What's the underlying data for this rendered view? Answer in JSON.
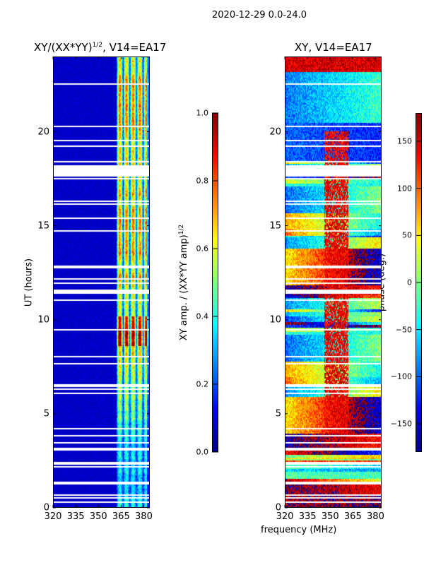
{
  "chart_data": {
    "type": "heatmap",
    "suptitle": "2020-12-29 0.0-24.0",
    "xlabel": "frequency (MHz)",
    "panels": [
      {
        "title": "XY/(XX*YY)",
        "title_exp": "1/2",
        "title_suffix": ", V14=EA17",
        "ylabel": "UT (hours)",
        "xlim": [
          320,
          384
        ],
        "ylim": [
          0,
          24
        ],
        "xticks": [
          320,
          335,
          350,
          365,
          380
        ],
        "yticks": [
          0,
          5,
          10,
          15,
          20
        ],
        "colorbar": {
          "label": "XY amp. / (XX*YY amp)",
          "label_exp": "1/2",
          "range": [
            0.0,
            1.0
          ],
          "ticks": [
            "0.0",
            "0.2",
            "0.4",
            "0.6",
            "0.8",
            "1.0"
          ],
          "colormap": "jet"
        },
        "description_values": "mostly low amplitude (~0.05) below 362 MHz; 362-384 MHz band shows sub-band stripes of 0.3-0.9"
      },
      {
        "title": "XY, V14=EA17",
        "xlim": [
          320,
          384
        ],
        "ylim": [
          0,
          24
        ],
        "xticks": [
          320,
          335,
          350,
          365,
          380
        ],
        "yticks": [
          0,
          5,
          10,
          15,
          20
        ],
        "colorbar": {
          "label": "phase (deg.)",
          "range": [
            -180,
            180
          ],
          "ticks": [
            "150",
            "100",
            "50",
            "0",
            "−50",
            "−100",
            "−150"
          ],
          "colormap": "jet"
        }
      }
    ]
  }
}
